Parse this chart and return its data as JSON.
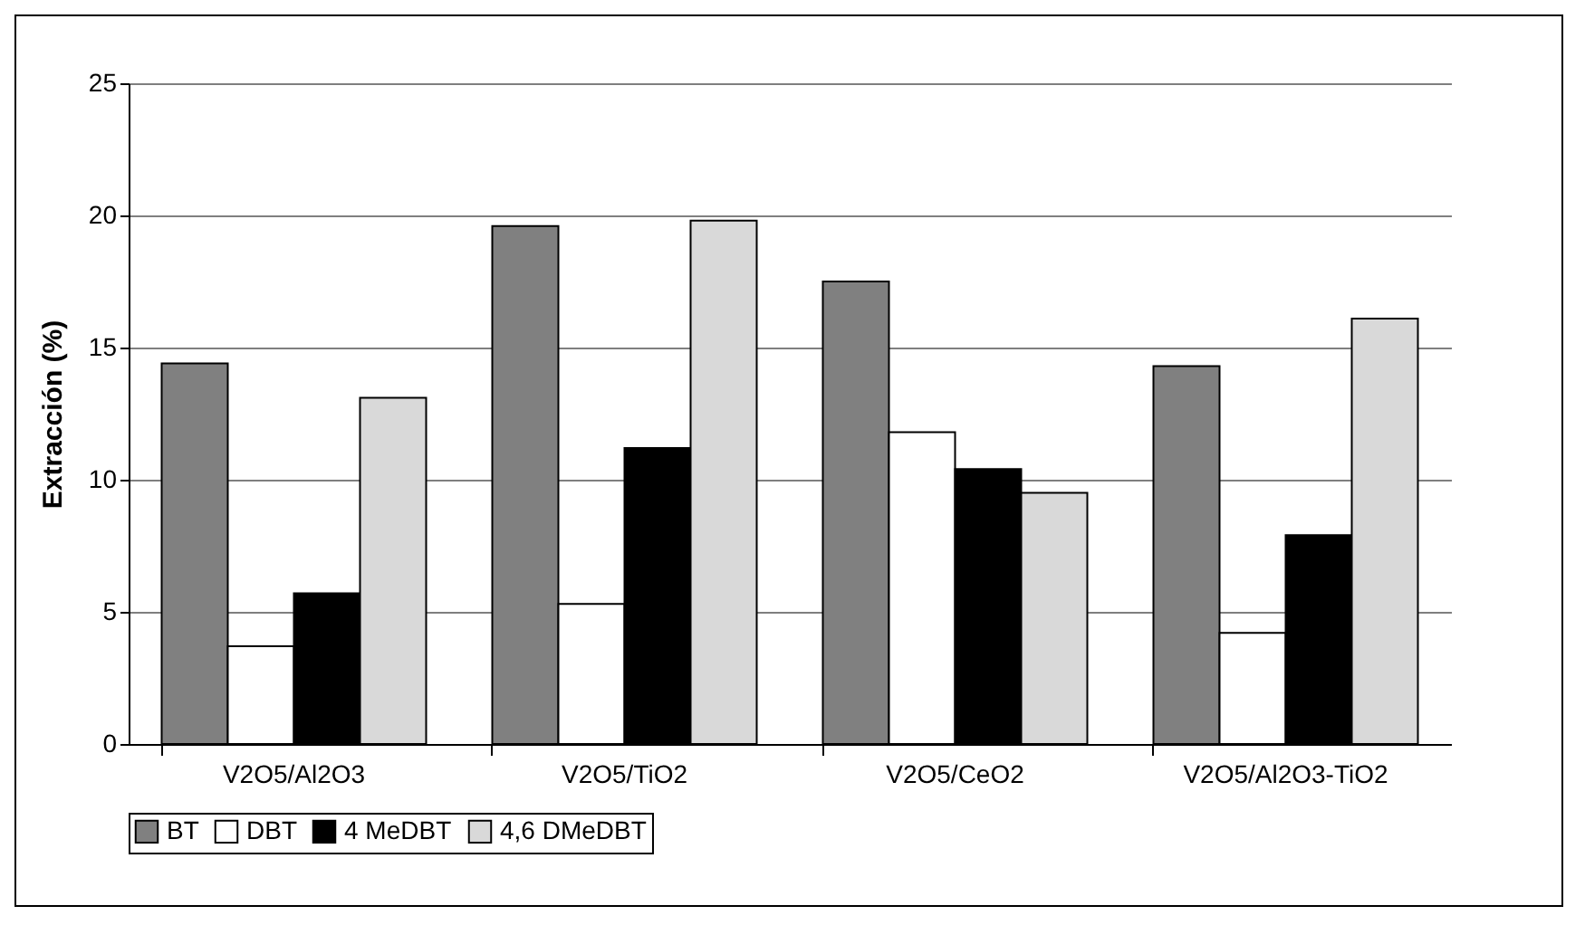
{
  "chart_data": {
    "type": "bar",
    "ylabel": "Extracción (%)",
    "categories": [
      "V2O5/Al2O3",
      "V2O5/TiO2",
      "V2O5/CeO2",
      "V2O5/Al2O3-TiO2"
    ],
    "series": [
      {
        "name": "BT",
        "color": "#808080",
        "values": [
          14.4,
          19.6,
          17.5,
          14.3
        ]
      },
      {
        "name": "DBT",
        "color": "#ffffff",
        "values": [
          3.7,
          5.3,
          11.8,
          4.2
        ]
      },
      {
        "name": "4 MeDBT",
        "color": "#000000",
        "values": [
          5.7,
          11.2,
          10.4,
          7.9
        ]
      },
      {
        "name": "4,6 DMeDBT",
        "color": "#d9d9d9",
        "values": [
          13.1,
          19.8,
          9.5,
          16.1
        ]
      }
    ],
    "ylim": [
      0,
      25
    ],
    "yticks": [
      0,
      5,
      10,
      15,
      20,
      25
    ],
    "grid": "y",
    "legend": "bottom"
  }
}
